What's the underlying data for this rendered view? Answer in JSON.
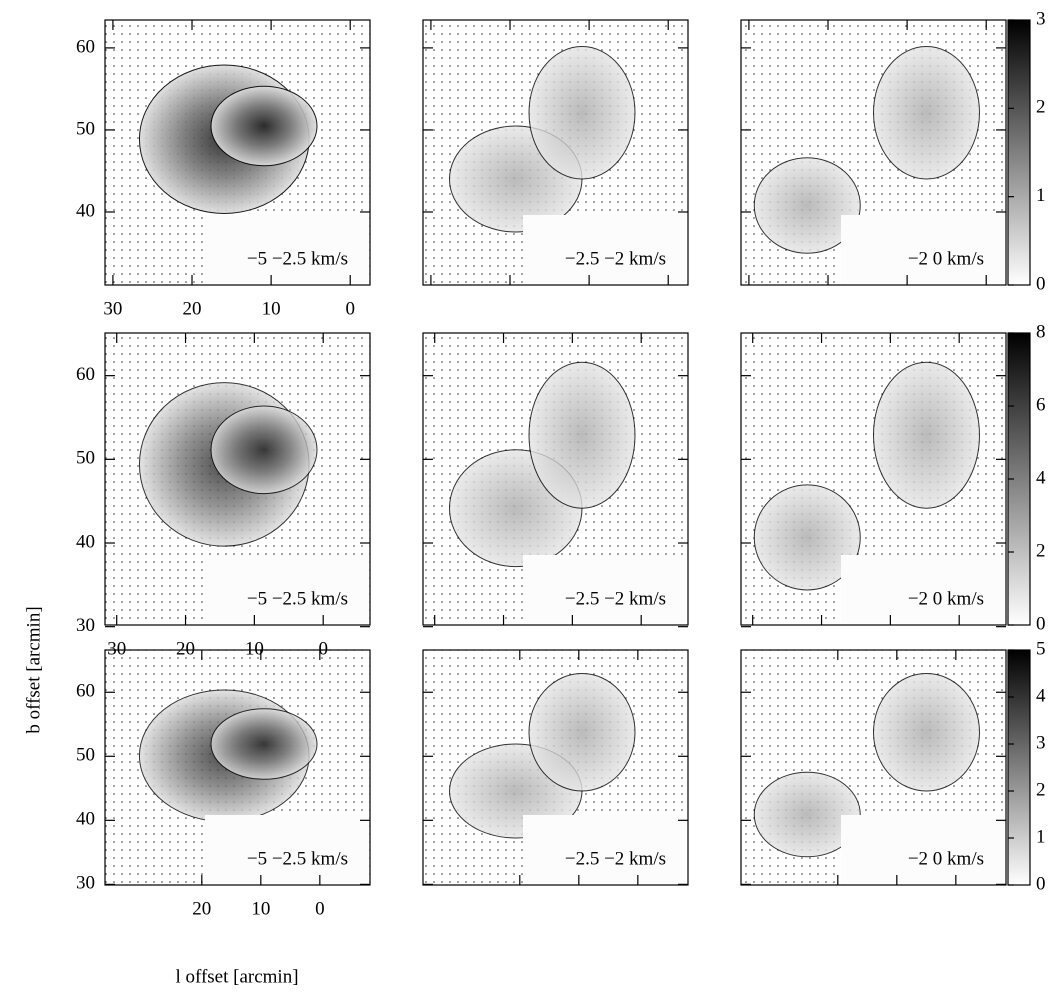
{
  "chart_data": {
    "type": "heatmap",
    "x_label": "l offset [arcmin]",
    "y_label": "b offset [arcmin]",
    "rows": [
      {
        "xlim": [
          31,
          -2.5
        ],
        "ylim": [
          31.1,
          63.4
        ],
        "xticks": [
          30,
          20,
          10,
          0
        ],
        "yticks": [
          40,
          50,
          60
        ],
        "colorbar": {
          "lim": [
            0,
            3
          ],
          "ticks": [
            0,
            1,
            2,
            3
          ]
        },
        "panels": [
          {
            "label": "−5 −2.5 km/s"
          },
          {
            "label": "−2.5 −2 km/s"
          },
          {
            "label": "−2 0 km/s"
          }
        ]
      },
      {
        "xlim": [
          31.7,
          -6.8
        ],
        "ylim": [
          30.2,
          65.1
        ],
        "xticks": [
          30,
          20,
          10,
          0
        ],
        "yticks": [
          30,
          40,
          50,
          60
        ],
        "colorbar": {
          "lim": [
            0,
            8
          ],
          "ticks": [
            0,
            2,
            4,
            6,
            8
          ]
        },
        "panels": [
          {
            "label": "−5 −2.5 km/s"
          },
          {
            "label": "−2.5 −2 km/s"
          },
          {
            "label": "−2 0 km/s"
          }
        ]
      },
      {
        "xlim": [
          36.4,
          -8.5
        ],
        "ylim": [
          29.9,
          66.6
        ],
        "xticks": [
          20,
          10,
          0
        ],
        "yticks": [
          30,
          40,
          50,
          60
        ],
        "colorbar": {
          "lim": [
            0,
            5
          ],
          "ticks": [
            0,
            1,
            2,
            3,
            4,
            5
          ]
        },
        "panels": [
          {
            "label": "−5 −2.5 km/s"
          },
          {
            "label": "−2.5 −2 km/s"
          },
          {
            "label": "−2 0 km/s"
          }
        ]
      }
    ]
  }
}
